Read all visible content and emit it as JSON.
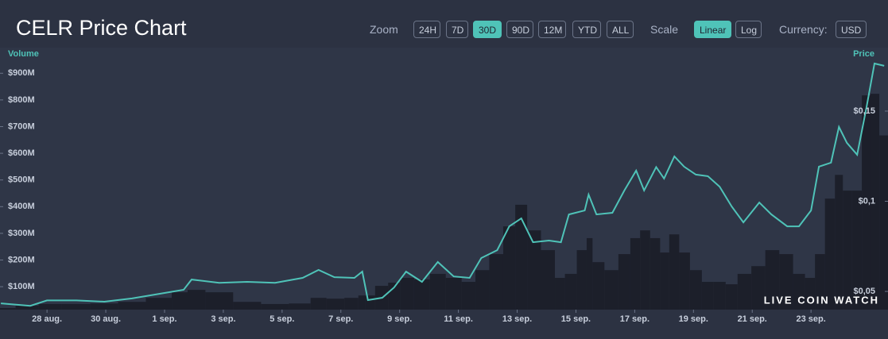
{
  "header": {
    "title": "CELR Price Chart",
    "zoom_label": "Zoom",
    "zoom": [
      "24H",
      "7D",
      "30D",
      "90D",
      "12M",
      "YTD",
      "ALL"
    ],
    "zoom_active": 2,
    "scale_label": "Scale",
    "scale": [
      "Linear",
      "Log"
    ],
    "scale_active": 0,
    "currency_label": "Currency:",
    "currency": "USD"
  },
  "chart_data": {
    "type": "line",
    "x": [
      26.43,
      27.43,
      28,
      29,
      29.95,
      30.89,
      31.84,
      32.65,
      32.92,
      33.86,
      34.81,
      35.76,
      36.7,
      37.24,
      37.78,
      38.46,
      38.73,
      38.92,
      39.41,
      39.81,
      40.22,
      40.76,
      41.3,
      41.84,
      42.38,
      42.78,
      43.32,
      43.73,
      44.14,
      44.54,
      45.08,
      45.49,
      45.76,
      46.3,
      46.43,
      46.7,
      47.24,
      47.65,
      48.05,
      48.32,
      48.73,
      49,
      49.35,
      49.68,
      50.08,
      50.49,
      50.89,
      51.3,
      51.7,
      52.24,
      52.65,
      53.19,
      53.59,
      54,
      54.27,
      54.68,
      54.95,
      55.22,
      55.57,
      55.89,
      56.16,
      56.49
    ],
    "series": [
      {
        "name": "Volume",
        "type": "bar",
        "color": "#1c1f2a",
        "values": [
          20000000,
          29000000,
          35000000,
          35000000,
          37000000,
          43000000,
          58000000,
          79000000,
          88000000,
          79000000,
          43000000,
          35000000,
          37000000,
          58000000,
          55000000,
          58000000,
          67000000,
          67000000,
          103000000,
          115000000,
          133000000,
          127000000,
          148000000,
          133000000,
          118000000,
          162000000,
          222000000,
          326000000,
          407000000,
          311000000,
          237000000,
          133000000,
          148000000,
          237000000,
          282000000,
          192000000,
          162000000,
          222000000,
          282000000,
          311000000,
          282000000,
          228000000,
          296000000,
          228000000,
          162000000,
          118000000,
          118000000,
          109000000,
          148000000,
          177000000,
          237000000,
          222000000,
          148000000,
          133000000,
          222000000,
          430000000,
          519000000,
          460000000,
          460000000,
          817000000,
          823000000,
          667000000
        ]
      },
      {
        "name": "Price",
        "type": "line",
        "axis": "y2",
        "color": "#4fc3b8",
        "values": [
          0.0434,
          0.042,
          0.045,
          0.045,
          0.0443,
          0.0461,
          0.0487,
          0.0509,
          0.0566,
          0.0548,
          0.0553,
          0.0548,
          0.0575,
          0.0619,
          0.0579,
          0.0575,
          0.061,
          0.0452,
          0.0465,
          0.0522,
          0.061,
          0.0553,
          0.0663,
          0.0583,
          0.0575,
          0.0685,
          0.0729,
          0.0861,
          0.0905,
          0.0773,
          0.0782,
          0.0773,
          0.0927,
          0.0949,
          0.1037,
          0.0927,
          0.0936,
          0.106,
          0.117,
          0.106,
          0.119,
          0.1126,
          0.1249,
          0.1192,
          0.1148,
          0.1139,
          0.1081,
          0.0971,
          0.0883,
          0.0993,
          0.0927,
          0.0861,
          0.0861,
          0.0949,
          0.1192,
          0.1214,
          0.1412,
          0.1324,
          0.1258,
          0.1522,
          0.1764,
          0.1751
        ]
      }
    ],
    "xlim": [
      26.4,
      56.62
    ],
    "xticks": [
      {
        "value": 28,
        "label": "28 aug."
      },
      {
        "value": 30,
        "label": "30 aug."
      },
      {
        "value": 32,
        "label": "1 sep."
      },
      {
        "value": 34,
        "label": "3 sep."
      },
      {
        "value": 36,
        "label": "5 sep."
      },
      {
        "value": 38,
        "label": "7 sep."
      },
      {
        "value": 40,
        "label": "9 sep."
      },
      {
        "value": 42,
        "label": "11 sep."
      },
      {
        "value": 44,
        "label": "13 sep."
      },
      {
        "value": 46,
        "label": "15 sep."
      },
      {
        "value": 48,
        "label": "17 sep."
      },
      {
        "value": 50,
        "label": "19 sep."
      },
      {
        "value": 52,
        "label": "21 sep."
      },
      {
        "value": 54,
        "label": "23 sep."
      }
    ],
    "ylim": [
      14000000,
      996000000
    ],
    "yticks": [
      {
        "value": 100000000,
        "label": "$100M"
      },
      {
        "value": 200000000,
        "label": "$200M"
      },
      {
        "value": 300000000,
        "label": "$300M"
      },
      {
        "value": 400000000,
        "label": "$400M"
      },
      {
        "value": 500000000,
        "label": "$500M"
      },
      {
        "value": 600000000,
        "label": "$600M"
      },
      {
        "value": 700000000,
        "label": "$700M"
      },
      {
        "value": 800000000,
        "label": "$800M"
      },
      {
        "value": 900000000,
        "label": "$900M"
      }
    ],
    "y2lim": [
      0.0399,
      0.1852
    ],
    "y2ticks": [
      {
        "value": 0.05,
        "label": "$0,05"
      },
      {
        "value": 0.1,
        "label": "$0,1"
      },
      {
        "value": 0.15,
        "label": "$0,15"
      }
    ],
    "watermark": "LIVE COIN WATCH"
  }
}
